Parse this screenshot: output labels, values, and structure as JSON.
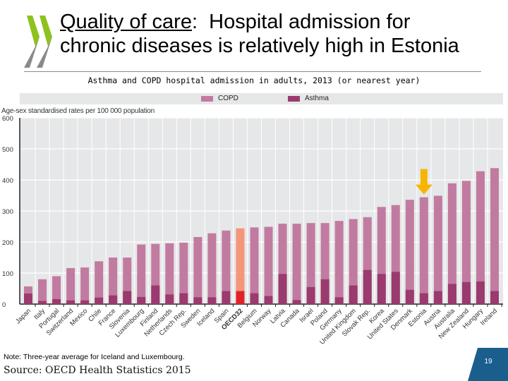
{
  "slide": {
    "title_underlined": "Quality of care",
    "title_rest_line1": ":  Hospital admission for",
    "title_line2": "chronic diseases is relatively high in Estonia",
    "subtitle": "Asthma and COPD hospital admission in adults, 2013 (or nearest year)",
    "note": "Note: Three-year average for Iceland and Luxembourg.",
    "source": "Source: OECD Health Statistics 2015",
    "page_number": "19",
    "logo": "oecd-logo"
  },
  "colors": {
    "copd": "#c27ba0",
    "asthma": "#9b3a6e",
    "oecd_copd": "#f4967a",
    "oecd_asthma": "#e0232a",
    "plot_bg": "#e6e7e8",
    "gridline": "#ffffff",
    "highlight_arrow": "#f7b500",
    "page_box": "#1a5e8e",
    "logo_green": "#8dc21f",
    "logo_grey": "#8a8a8a"
  },
  "chart_data": {
    "type": "bar",
    "stacked": false,
    "overlay": true,
    "title": "Asthma and COPD hospital admission in adults, 2013 (or nearest year)",
    "xlabel": "",
    "ylabel": "Age-sex standardised rates per 100 000 population",
    "ylim": [
      0,
      600
    ],
    "yticks": [
      0,
      100,
      200,
      300,
      400,
      500,
      600
    ],
    "grid": true,
    "legend": {
      "placement": "top",
      "entries": [
        "COPD",
        "Asthma"
      ]
    },
    "highlight": {
      "category": "Estonia",
      "marker": "arrow-down"
    },
    "reference_category": "OECD32",
    "categories": [
      "Japan",
      "Italy",
      "Portugal",
      "Switzerland",
      "Mexico",
      "Chile",
      "France",
      "Slovenia",
      "Luxembourg",
      "Finland",
      "Netherlands",
      "Czech Rep.",
      "Sweden",
      "Iceland",
      "Spain",
      "OECD32",
      "Belgium",
      "Norway",
      "Latvia",
      "Canada",
      "Israel",
      "Poland",
      "Germany",
      "United Kingdom",
      "Slovak Rep.",
      "Korea",
      "United States",
      "Denmark",
      "Estonia",
      "Austria",
      "Australia",
      "New Zealand",
      "Hungary",
      "Ireland"
    ],
    "series": [
      {
        "name": "COPD",
        "values": [
          57,
          80,
          90,
          116,
          118,
          138,
          150,
          150,
          192,
          194,
          196,
          198,
          216,
          228,
          237,
          244,
          247,
          249,
          259,
          259,
          261,
          261,
          268,
          274,
          280,
          313,
          319,
          336,
          344,
          349,
          389,
          397,
          428,
          438
        ]
      },
      {
        "name": "Asthma",
        "values": [
          34,
          10,
          16,
          12,
          12,
          21,
          28,
          42,
          23,
          60,
          31,
          35,
          22,
          22,
          42,
          42,
          35,
          26,
          97,
          13,
          55,
          80,
          22,
          60,
          110,
          97,
          104,
          46,
          35,
          42,
          65,
          71,
          73,
          42
        ]
      }
    ]
  }
}
